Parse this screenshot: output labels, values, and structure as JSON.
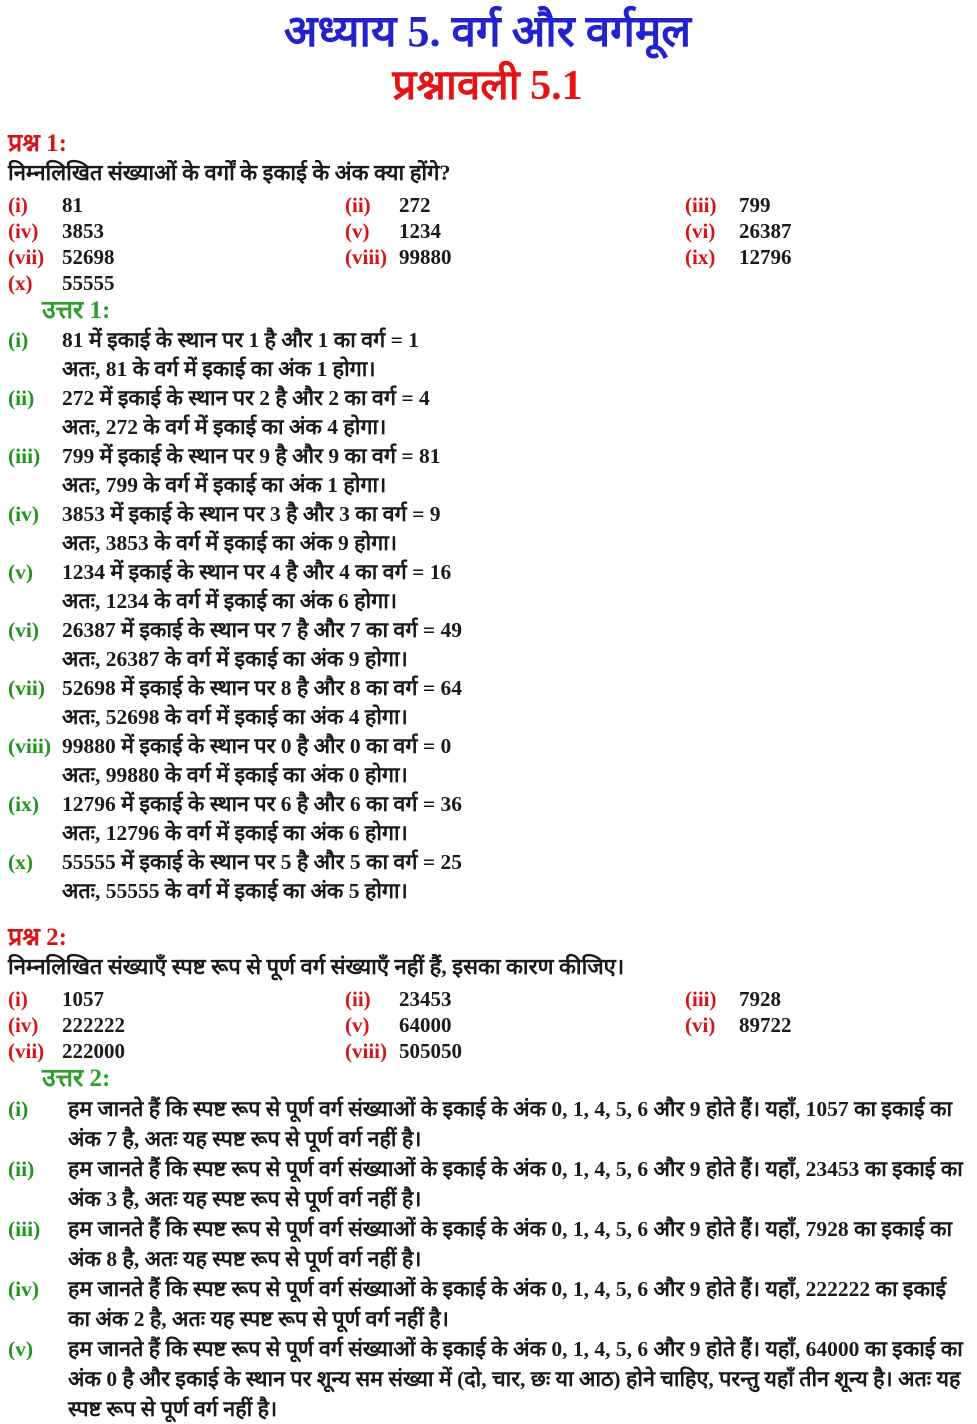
{
  "page": {
    "title": "अध्याय 5. वर्ग और वर्गमूल",
    "subtitle": "प्रश्नावली 5.1"
  },
  "colors": {
    "title_blue": "#2323cd",
    "heading_red": "#d61418",
    "subtitle_red": "#e41414",
    "answer_green": "#1f941f",
    "body_text": "#1a1a1a",
    "background": "#ffffff"
  },
  "question1": {
    "heading": "प्रश्न 1:",
    "text": "निम्नलिखित संख्याओं के वर्गों के इकाई के अंक क्या होंगे?",
    "items": [
      {
        "num": "(i)",
        "value": "81"
      },
      {
        "num": "(ii)",
        "value": "272"
      },
      {
        "num": "(iii)",
        "value": "799"
      },
      {
        "num": "(iv)",
        "value": "3853"
      },
      {
        "num": "(v)",
        "value": "1234"
      },
      {
        "num": "(vi)",
        "value": "26387"
      },
      {
        "num": "(vii)",
        "value": "52698"
      },
      {
        "num": "(viii)",
        "value": "99880"
      },
      {
        "num": "(ix)",
        "value": "12796"
      },
      {
        "num": "(x)",
        "value": "55555"
      }
    ]
  },
  "answer1": {
    "heading": "उत्तर 1:",
    "items": [
      {
        "num": "(i)",
        "line1": "81 में इकाई के स्थान पर 1 है और 1 का वर्ग = 1",
        "line2": "अतः, 81 के वर्ग में इकाई का अंक 1 होगा।"
      },
      {
        "num": "(ii)",
        "line1": "272 में इकाई के स्थान पर 2 है और 2 का वर्ग = 4",
        "line2": "अतः, 272 के वर्ग में इकाई का अंक 4 होगा।"
      },
      {
        "num": "(iii)",
        "line1": "799 में इकाई के स्थान पर 9 है और 9 का वर्ग = 81",
        "line2": "अतः, 799 के वर्ग में इकाई का अंक 1 होगा।"
      },
      {
        "num": "(iv)",
        "line1": "3853 में इकाई के स्थान पर 3 है और 3 का वर्ग = 9",
        "line2": "अतः, 3853 के वर्ग में इकाई का अंक 9 होगा।"
      },
      {
        "num": "(v)",
        "line1": "1234 में इकाई के स्थान पर 4 है और 4 का वर्ग = 16",
        "line2": "अतः, 1234 के वर्ग में इकाई का अंक 6 होगा।"
      },
      {
        "num": "(vi)",
        "line1": "26387 में इकाई के स्थान पर 7 है और 7 का वर्ग = 49",
        "line2": "अतः, 26387 के वर्ग में इकाई का अंक 9 होगा।"
      },
      {
        "num": "(vii)",
        "line1": "52698 में इकाई के स्थान पर 8 है और 8 का वर्ग = 64",
        "line2": "अतः, 52698 के वर्ग में इकाई का अंक 4 होगा।"
      },
      {
        "num": "(viii)",
        "line1": "99880 में इकाई के स्थान पर 0 है और 0 का वर्ग = 0",
        "line2": "अतः, 99880 के वर्ग में इकाई का अंक 0 होगा।"
      },
      {
        "num": "(ix)",
        "line1": "12796 में इकाई के स्थान पर 6 है और 6 का वर्ग = 36",
        "line2": "अतः, 12796 के वर्ग में इकाई का अंक 6 होगा।"
      },
      {
        "num": "(x)",
        "line1": "55555 में इकाई के स्थान पर 5 है और 5 का वर्ग = 25",
        "line2": "अतः, 55555 के वर्ग में इकाई का अंक 5 होगा।"
      }
    ]
  },
  "question2": {
    "heading": "प्रश्न 2:",
    "text": "निम्नलिखित संख्याएँ स्पष्ट रूप से पूर्ण वर्ग संख्याएँ नहीं हैं, इसका कारण कीजिए।",
    "items": [
      {
        "num": "(i)",
        "value": "1057"
      },
      {
        "num": "(ii)",
        "value": "23453"
      },
      {
        "num": "(iii)",
        "value": "7928"
      },
      {
        "num": "(iv)",
        "value": "222222"
      },
      {
        "num": "(v)",
        "value": "64000"
      },
      {
        "num": "(vi)",
        "value": "89722"
      },
      {
        "num": "(vii)",
        "value": "222000"
      },
      {
        "num": "(viii)",
        "value": "505050"
      }
    ]
  },
  "answer2": {
    "heading": "उत्तर 2:",
    "items": [
      {
        "num": "(i)",
        "text": "हम जानते हैं कि स्पष्ट रूप से पूर्ण वर्ग संख्याओं के इकाई के अंक 0, 1, 4, 5, 6 और 9 होते हैं। यहाँ, 1057 का इकाई का अंक 7 है, अतः यह स्पष्ट रूप से पूर्ण वर्ग नहीं है।"
      },
      {
        "num": "(ii)",
        "text": "हम जानते हैं कि स्पष्ट रूप से पूर्ण वर्ग संख्याओं के इकाई के अंक 0, 1, 4, 5, 6 और 9 होते हैं। यहाँ, 23453 का इकाई का अंक 3 है, अतः यह स्पष्ट रूप से पूर्ण वर्ग नहीं है।"
      },
      {
        "num": "(iii)",
        "text": "हम जानते हैं कि स्पष्ट रूप से पूर्ण वर्ग संख्याओं के इकाई के अंक 0, 1, 4, 5, 6 और 9 होते हैं। यहाँ, 7928 का इकाई का अंक 8 है, अतः यह स्पष्ट रूप से पूर्ण वर्ग नहीं है।"
      },
      {
        "num": "(iv)",
        "text": "हम जानते हैं कि स्पष्ट रूप से पूर्ण वर्ग संख्याओं के इकाई के अंक 0, 1, 4, 5, 6 और 9 होते हैं। यहाँ, 222222 का इकाई का अंक 2 है, अतः यह स्पष्ट रूप से पूर्ण वर्ग नहीं है।"
      },
      {
        "num": "(v)",
        "text": "हम जानते हैं कि स्पष्ट रूप से पूर्ण वर्ग संख्याओं के इकाई के अंक 0, 1, 4, 5, 6 और 9 होते हैं। यहाँ, 64000 का इकाई का अंक 0 है और इकाई के स्थान पर शून्य सम संख्या में (दो, चार, छः या आठ) होने चाहिए, परन्तु यहाँ तीन शून्य है। अतः यह स्पष्ट रूप से पूर्ण वर्ग नहीं है।"
      }
    ]
  }
}
